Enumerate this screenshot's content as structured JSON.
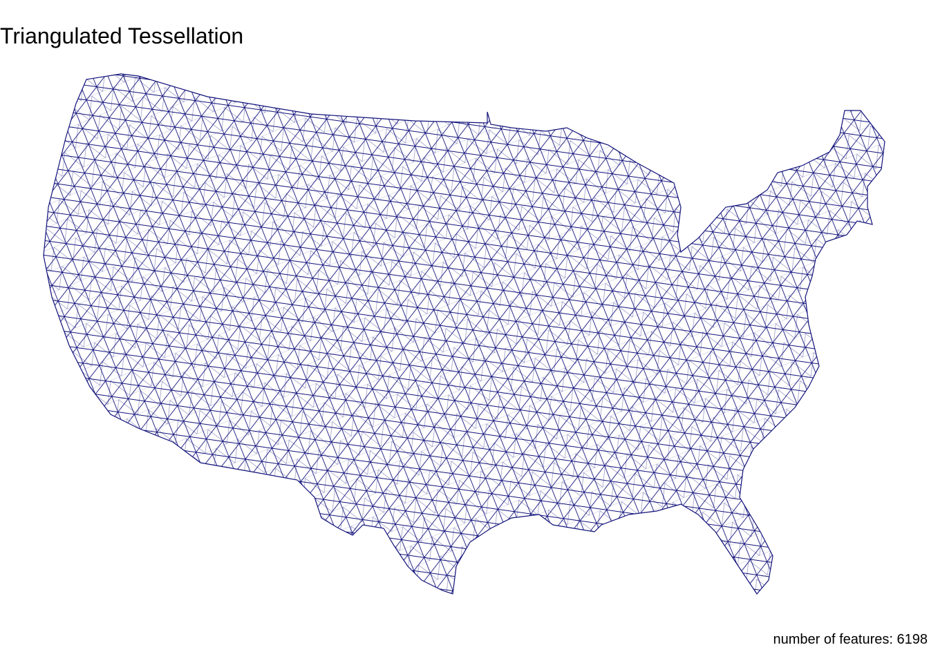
{
  "header": {
    "title": "Triangulated Tessellation"
  },
  "footer": {
    "caption": "number of features: 6198"
  }
}
